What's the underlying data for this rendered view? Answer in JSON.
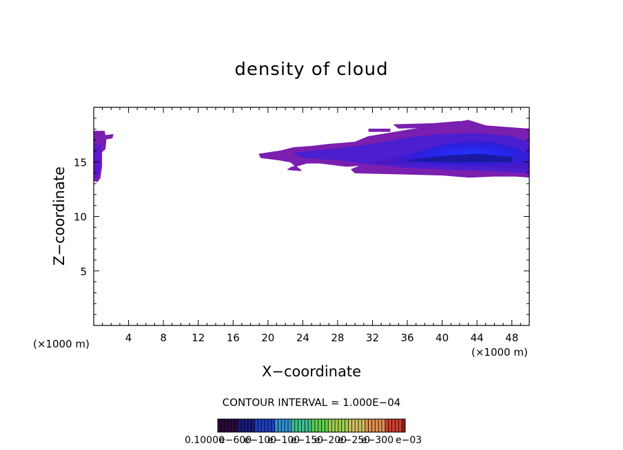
{
  "chart_data": {
    "type": "heatmap",
    "title": "density of cloud",
    "xlabel": "X−coordinate",
    "ylabel": "Z−coordinate",
    "x_unit_left": "(×1000 m)",
    "x_unit_right": "(×1000 m)",
    "xlim": [
      0,
      50
    ],
    "ylim": [
      0,
      20
    ],
    "x_ticks": [
      4,
      8,
      12,
      16,
      20,
      24,
      28,
      32,
      36,
      40,
      44,
      48
    ],
    "y_ticks": [
      5,
      10,
      15
    ],
    "contour_interval_text": "CONTOUR INTERVAL = 1.000E−04",
    "colorbar_tick_labels": [
      "0.10000",
      "e−600",
      "e−100",
      "e−100",
      "e−150",
      "e−200",
      "e−250",
      "e−300",
      "e−03"
    ],
    "colors": {
      "low": "#7a1fb0",
      "mid": "#4b1ed0",
      "high": "#1e2ef5",
      "core": "#1a1aa0"
    },
    "regions": [
      {
        "name": "left-edge-cloud",
        "x_range": [
          0,
          2
        ],
        "z_range": [
          13.2,
          17.8
        ],
        "peak": "low"
      },
      {
        "name": "mid-upper-cloud",
        "x_range": [
          19,
          50
        ],
        "z_range": [
          13.5,
          18.8
        ],
        "peak": "high"
      }
    ]
  }
}
